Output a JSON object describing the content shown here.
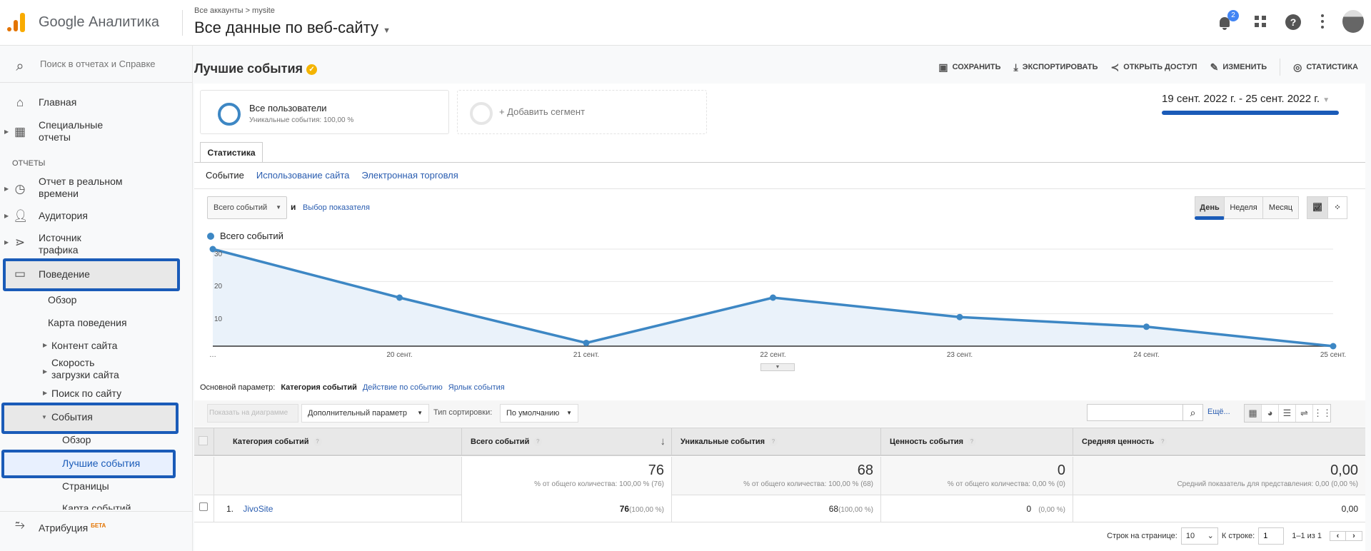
{
  "header": {
    "app_name": "Google Аналитика",
    "breadcrumb": "Все аккаунты > mysite",
    "property": "Все данные по веб-сайту",
    "notifications": "2"
  },
  "sidebar": {
    "search_placeholder": "Поиск в отчетах и Справке",
    "section_reports": "ОТЧЕТЫ",
    "home": "Главная",
    "custom_reports": [
      "Специальные",
      "отчеты"
    ],
    "realtime": [
      "Отчет в реальном",
      "времени"
    ],
    "audience": "Аудитория",
    "acquisition": [
      "Источник",
      "трафика"
    ],
    "behavior": "Поведение",
    "behavior_items": {
      "overview": "Обзор",
      "flow": "Карта поведения",
      "content": "Контент сайта",
      "speed": [
        "Скорость",
        "загрузки сайта"
      ],
      "search": "Поиск по сайту",
      "events": "События"
    },
    "events_items": {
      "overview": "Обзор",
      "top": "Лучшие события",
      "pages": "Страницы",
      "flow": "Карта событий"
    },
    "attribution": "Атрибуция",
    "beta": "БЕТА"
  },
  "page": {
    "title": "Лучшие события",
    "toolbar": {
      "save": "СОХРАНИТЬ",
      "export": "ЭКСПОРТИРОВАТЬ",
      "share": "ОТКРЫТЬ ДОСТУП",
      "edit": "ИЗМЕНИТЬ",
      "insights": "СТАТИСТИКА"
    },
    "segment": {
      "name": "Все пользователи",
      "detail": "Уникальные события: 100,00 %",
      "add": "+ Добавить сегмент"
    },
    "date_range": "19 сент. 2022 г. - 25 сент. 2022 г.",
    "tab": "Статистика",
    "subtabs": [
      "Событие",
      "Использование сайта",
      "Электронная торговля"
    ],
    "metric_select": "Всего событий",
    "and": "и",
    "metric_picker": "Выбор показателя",
    "granularity": [
      "День",
      "Неделя",
      "Месяц"
    ],
    "granularity_selected": "День"
  },
  "chart_data": {
    "type": "area",
    "series": [
      {
        "name": "Всего событий",
        "values": [
          30,
          15,
          1,
          15,
          9,
          6,
          0
        ]
      }
    ],
    "x": [
      "19 сент.",
      "20 сент.",
      "21 сент.",
      "22 сент.",
      "23 сент.",
      "24 сент.",
      "25 сент."
    ],
    "x_tick_labels": [
      "…",
      "20 сент.",
      "21 сент.",
      "22 сент.",
      "23 сент.",
      "24 сент.",
      "25 сент."
    ],
    "y_ticks": [
      10,
      20,
      30
    ],
    "ylim": [
      0,
      30
    ],
    "grid": true,
    "color": "#3d87c4",
    "legend": "top-left"
  },
  "table": {
    "primary_dim_label": "Основной параметр:",
    "dims": [
      "Категория событий",
      "Действие по событию",
      "Ярлык события"
    ],
    "plot_rows": "Показать на диаграмме",
    "secondary_dim": "Дополнительный параметр",
    "sort_label": "Тип сортировки:",
    "sort_value": "По умолчанию",
    "more": "Ещё...",
    "columns": [
      "Категория событий",
      "Всего событий",
      "Уникальные события",
      "Ценность события",
      "Средняя ценность"
    ],
    "totals": [
      {
        "value": "76",
        "sub": "% от общего количества: 100,00 % (76)"
      },
      {
        "value": "68",
        "sub": "% от общего количества: 100,00 % (68)"
      },
      {
        "value": "0",
        "sub": "% от общего количества: 0,00 % (0)"
      },
      {
        "value": "0,00",
        "sub": "Средний показатель для представления: 0,00 (0,00 %)"
      }
    ],
    "rows": [
      {
        "index": "1.",
        "category": "JivoSite",
        "total": "76",
        "total_pct": "(100,00 %)",
        "unique": "68",
        "unique_pct": "(100,00 %)",
        "value": "0",
        "value_pct": "(0,00 %)",
        "avg": "0,00"
      }
    ],
    "pagination": {
      "rows_label": "Строк на странице:",
      "rows_value": "10",
      "goto_label": "К строке:",
      "goto_value": "1",
      "range": "1–1 из 1"
    }
  }
}
